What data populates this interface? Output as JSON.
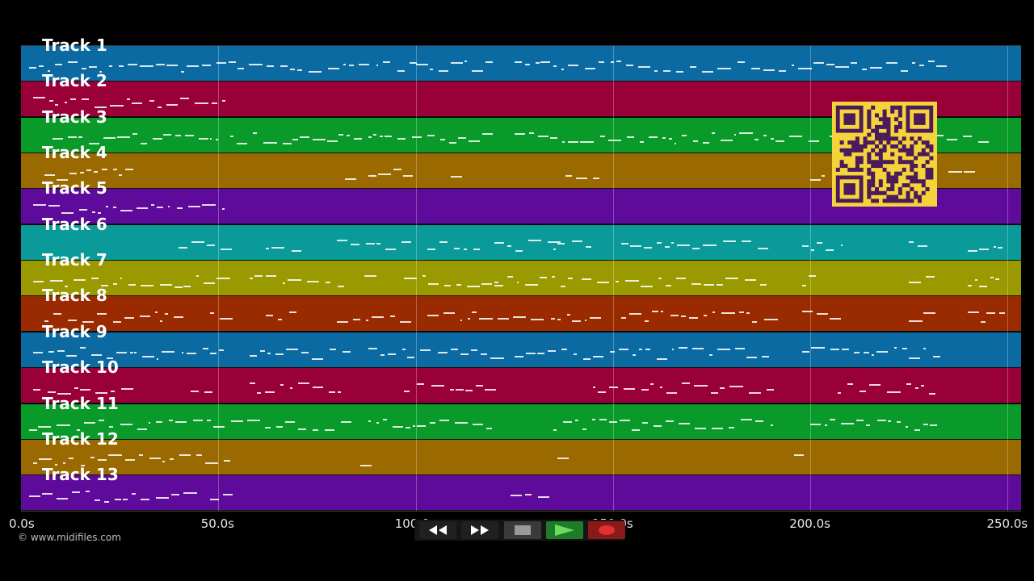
{
  "tracks": [
    {
      "label": "Track 1",
      "color": "#0a6aa1"
    },
    {
      "label": "Track 2",
      "color": "#9a0038"
    },
    {
      "label": "Track 3",
      "color": "#0a9a2a"
    },
    {
      "label": "Track 4",
      "color": "#9a6a00"
    },
    {
      "label": "Track 5",
      "color": "#5e0a9a"
    },
    {
      "label": "Track 6",
      "color": "#0a9a9a"
    },
    {
      "label": "Track 7",
      "color": "#9a9a00"
    },
    {
      "label": "Track 8",
      "color": "#9a2a00"
    },
    {
      "label": "Track 9",
      "color": "#0a6aa1"
    },
    {
      "label": "Track 10",
      "color": "#9a0038"
    },
    {
      "label": "Track 11",
      "color": "#0a9a2a"
    },
    {
      "label": "Track 12",
      "color": "#9a6a00"
    },
    {
      "label": "Track 13",
      "color": "#5e0a9a"
    }
  ],
  "timeline": {
    "max_seconds": 255,
    "ticks": [
      {
        "value": 0,
        "label": "0.0s"
      },
      {
        "value": 50,
        "label": "50.0s"
      },
      {
        "value": 100,
        "label": "100.0s"
      },
      {
        "value": 150,
        "label": "150.0s"
      },
      {
        "value": 200,
        "label": "200.0s"
      },
      {
        "value": 250,
        "label": "250.0s"
      }
    ]
  },
  "copyright": "© www.midifiles.com",
  "transport": {
    "rewind_icon": "rewind-icon",
    "fast_forward_icon": "fast-forward-icon",
    "stop_icon": "stop-icon",
    "play_icon": "play-icon",
    "record_icon": "record-icon",
    "colors": {
      "play": "#1f7a2a",
      "record": "#8a1a1a",
      "stop": "#3a3a3a",
      "nav": "#202020"
    }
  },
  "qr_code": {
    "icon": "qr-code-icon",
    "color": "#f5d33b",
    "ink": "#4a1a5a"
  }
}
